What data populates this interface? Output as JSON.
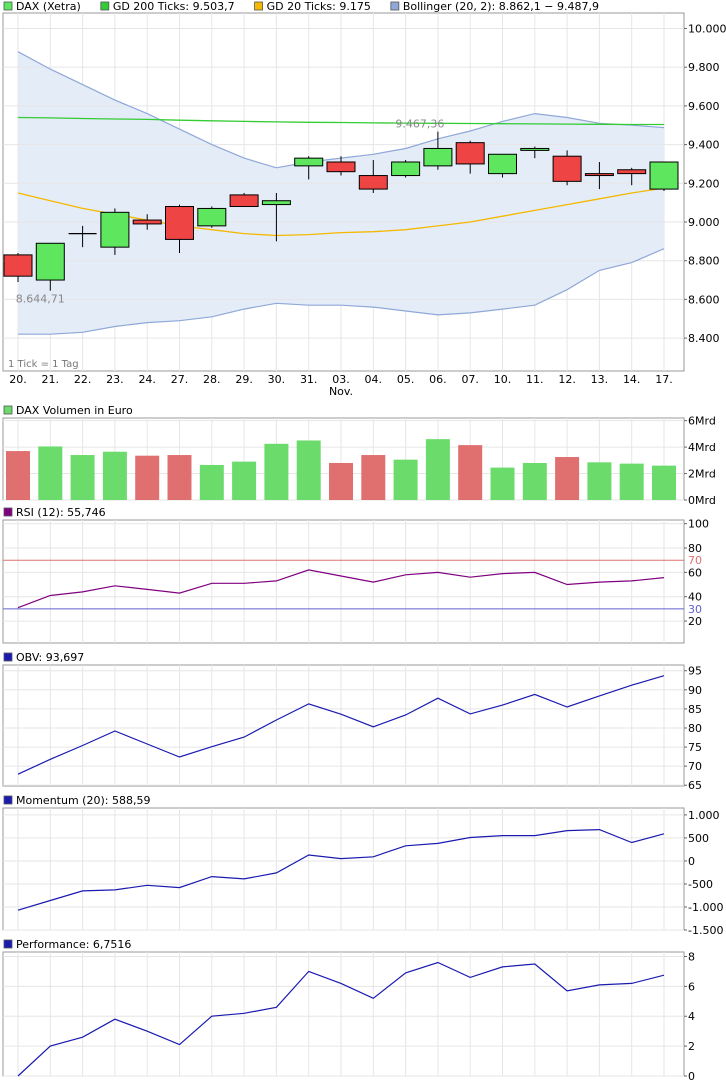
{
  "colors": {
    "up": "#5ee65e",
    "down": "#ee4444",
    "candle_border": "#000000",
    "gd200": "#33cc33",
    "gd20": "#f5b800",
    "bollinger_line": "#8fa8d8",
    "bollinger_fill": "#e4ecf8",
    "vol_up": "#6bdb6b",
    "vol_down": "#e07070",
    "rsi": "#800080",
    "rsi_70": "#e07070",
    "rsi_30": "#6060d0",
    "blue_line": "#1a1ab0",
    "grid": "#e6e6e6",
    "panel_border": "#999999",
    "legend_dark": "#400040"
  },
  "chart_data": [
    {
      "type": "candlestick",
      "legend": [
        {
          "label": "DAX (Xetra)",
          "color_key": "up"
        },
        {
          "label": "GD 200 Ticks: 9.503,7",
          "color_key": "gd200"
        },
        {
          "label": "GD 20 Ticks: 9.175",
          "color_key": "gd20"
        },
        {
          "label": "Bollinger (20, 2): 8.862,1 − 9.487,9",
          "color_key": "bollinger_line"
        }
      ],
      "x_labels": [
        "20.",
        "21.",
        "22.",
        "23.",
        "24.",
        "27.",
        "28.",
        "29.",
        "30.",
        "31.",
        "03.",
        "04.",
        "05.",
        "06.",
        "07.",
        "10.",
        "11.",
        "12.",
        "13.",
        "14.",
        "17."
      ],
      "x_sublabel": {
        "index": 10,
        "text": "Nov."
      },
      "y_ticks": [
        8400,
        8600,
        8800,
        9000,
        9200,
        9400,
        9600,
        9800,
        10000
      ],
      "y_tick_labels": [
        "8.400",
        "8.600",
        "8.800",
        "9.000",
        "9.200",
        "9.400",
        "9.600",
        "9.800",
        "10.000"
      ],
      "ylim": [
        8230,
        10080
      ],
      "footnote": "1 Tick = 1 Tag",
      "annotations": [
        {
          "label": "9.467,36",
          "index": 13,
          "value": 9467
        },
        {
          "label": "8.644,71",
          "index": 1,
          "value": 8645
        }
      ],
      "ohlc": [
        {
          "o": 8830,
          "h": 8840,
          "l": 8690,
          "c": 8720
        },
        {
          "o": 8700,
          "h": 8890,
          "l": 8645,
          "c": 8890
        },
        {
          "o": 8940,
          "h": 8980,
          "l": 8870,
          "c": 8940
        },
        {
          "o": 8870,
          "h": 9070,
          "l": 8830,
          "c": 9050
        },
        {
          "o": 9010,
          "h": 9040,
          "l": 8960,
          "c": 8990
        },
        {
          "o": 9080,
          "h": 9090,
          "l": 8840,
          "c": 8910
        },
        {
          "o": 8980,
          "h": 9080,
          "l": 8970,
          "c": 9070
        },
        {
          "o": 9140,
          "h": 9150,
          "l": 9080,
          "c": 9080
        },
        {
          "o": 9090,
          "h": 9150,
          "l": 8900,
          "c": 9110
        },
        {
          "o": 9290,
          "h": 9340,
          "l": 9220,
          "c": 9330
        },
        {
          "o": 9310,
          "h": 9340,
          "l": 9240,
          "c": 9260
        },
        {
          "o": 9240,
          "h": 9320,
          "l": 9150,
          "c": 9170
        },
        {
          "o": 9240,
          "h": 9320,
          "l": 9230,
          "c": 9310
        },
        {
          "o": 9290,
          "h": 9467,
          "l": 9270,
          "c": 9380
        },
        {
          "o": 9410,
          "h": 9420,
          "l": 9250,
          "c": 9300
        },
        {
          "o": 9250,
          "h": 9350,
          "l": 9230,
          "c": 9350
        },
        {
          "o": 9370,
          "h": 9390,
          "l": 9330,
          "c": 9380
        },
        {
          "o": 9340,
          "h": 9370,
          "l": 9190,
          "c": 9210
        },
        {
          "o": 9250,
          "h": 9310,
          "l": 9170,
          "c": 9240
        },
        {
          "o": 9270,
          "h": 9280,
          "l": 9190,
          "c": 9250
        },
        {
          "o": 9170,
          "h": 9310,
          "l": 9160,
          "c": 9310
        }
      ],
      "gd200": [
        9540,
        9538,
        9535,
        9532,
        9530,
        9526,
        9523,
        9520,
        9517,
        9515,
        9514,
        9512,
        9511,
        9510,
        9509,
        9508,
        9507,
        9506,
        9505,
        9504,
        9503.7
      ],
      "gd20": [
        9150,
        9110,
        9070,
        9040,
        9010,
        8980,
        8960,
        8940,
        8930,
        8935,
        8945,
        8950,
        8960,
        8980,
        9000,
        9030,
        9060,
        9090,
        9120,
        9150,
        9175
      ],
      "bollinger_upper": [
        9880,
        9790,
        9710,
        9630,
        9560,
        9480,
        9400,
        9330,
        9280,
        9310,
        9330,
        9350,
        9380,
        9430,
        9470,
        9520,
        9560,
        9540,
        9510,
        9500,
        9487.9
      ],
      "bollinger_lower": [
        8420,
        8420,
        8430,
        8460,
        8480,
        8490,
        8510,
        8550,
        8580,
        8570,
        8570,
        8560,
        8540,
        8520,
        8530,
        8550,
        8570,
        8650,
        8750,
        8790,
        8862.1
      ]
    },
    {
      "type": "bar",
      "legend": [
        {
          "label": "DAX Volumen in Euro",
          "color_key": "vol_up"
        }
      ],
      "y_ticks": [
        0,
        2,
        4,
        6
      ],
      "y_tick_labels": [
        "0Mrd",
        "2Mrd",
        "4Mrd",
        "6Mrd"
      ],
      "ylim": [
        0,
        6.2
      ],
      "values": [
        3.7,
        4.05,
        3.4,
        3.65,
        3.35,
        3.4,
        2.65,
        2.9,
        4.25,
        4.5,
        2.8,
        3.4,
        3.05,
        4.6,
        4.15,
        2.45,
        2.8,
        3.25,
        2.85,
        2.75,
        2.6
      ],
      "directions": [
        "down",
        "up",
        "up",
        "up",
        "down",
        "down",
        "up",
        "up",
        "up",
        "up",
        "down",
        "down",
        "up",
        "up",
        "down",
        "up",
        "up",
        "down",
        "up",
        "up",
        "up"
      ]
    },
    {
      "type": "line",
      "legend": [
        {
          "label": "RSI (12): 55,746",
          "color_key": "rsi"
        }
      ],
      "y_ticks": [
        20,
        40,
        60,
        80,
        100
      ],
      "y_tick_labels": [
        "20",
        "40",
        "60",
        "80",
        "100"
      ],
      "ref_lines": [
        {
          "value": 70,
          "label": "70",
          "color_key": "rsi_70"
        },
        {
          "value": 30,
          "label": "30",
          "color_key": "rsi_30"
        }
      ],
      "ylim": [
        2,
        103
      ],
      "values": [
        31,
        41,
        44,
        49,
        46,
        43,
        51,
        51,
        53,
        62,
        57,
        52,
        58,
        60,
        56,
        59,
        60,
        50,
        52,
        53,
        55.7
      ]
    },
    {
      "type": "line",
      "legend": [
        {
          "label": "OBV: 93,697",
          "color_key": "blue_line"
        }
      ],
      "y_ticks": [
        65,
        70,
        75,
        80,
        85,
        90,
        95
      ],
      "y_tick_labels": [
        "65",
        "70",
        "75",
        "80",
        "85",
        "90",
        "95"
      ],
      "ylim": [
        64.8,
        96.5
      ],
      "values": [
        67.9,
        71.8,
        75.4,
        79.2,
        75.8,
        72.4,
        75.1,
        77.6,
        82.1,
        86.3,
        83.6,
        80.3,
        83.4,
        87.8,
        83.7,
        86.0,
        88.8,
        85.5,
        88.4,
        91.2,
        93.7
      ]
    },
    {
      "type": "line",
      "legend": [
        {
          "label": "Momentum (20): 588,59",
          "color_key": "blue_line"
        }
      ],
      "y_ticks": [
        -1500,
        -1000,
        -500,
        0,
        500,
        1000
      ],
      "y_tick_labels": [
        "-1.500",
        "-1.000",
        "-500",
        "0",
        "500",
        "1.000"
      ],
      "ylim": [
        -1500,
        1150
      ],
      "values": [
        -1070,
        -860,
        -650,
        -630,
        -530,
        -580,
        -340,
        -390,
        -260,
        130,
        50,
        90,
        330,
        380,
        510,
        550,
        550,
        660,
        680,
        400,
        588.59
      ]
    },
    {
      "type": "line",
      "legend": [
        {
          "label": "Performance: 6,7516",
          "color_key": "blue_line"
        }
      ],
      "y_ticks": [
        0,
        2,
        4,
        6,
        8
      ],
      "y_tick_labels": [
        "0",
        "2",
        "4",
        "6",
        "8"
      ],
      "ylim": [
        0,
        8.3
      ],
      "values": [
        0,
        2.0,
        2.6,
        3.8,
        3.0,
        2.1,
        4.0,
        4.2,
        4.6,
        7.0,
        6.2,
        5.2,
        6.9,
        7.6,
        6.6,
        7.3,
        7.5,
        5.7,
        6.1,
        6.2,
        6.75
      ]
    }
  ]
}
